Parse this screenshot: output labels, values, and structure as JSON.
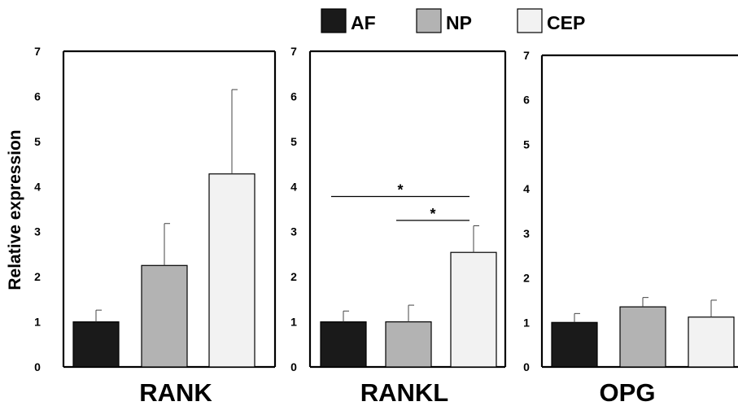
{
  "colors": {
    "AF": "#1a1a1a",
    "NP": "#b3b3b3",
    "CEP": "#f2f2f2"
  },
  "legend": [
    "AF",
    "NP",
    "CEP"
  ],
  "chart_data": [
    {
      "type": "bar",
      "title": "RANK",
      "ylabel": "Relative expression",
      "ylim": [
        0,
        7
      ],
      "yticks": [
        "0",
        "1",
        "2",
        "3",
        "4",
        "5",
        "6",
        "7"
      ],
      "categories": [
        "AF",
        "NP",
        "CEP"
      ],
      "values": [
        1.0,
        2.25,
        4.28
      ],
      "errors": [
        0.26,
        0.93,
        1.87
      ],
      "annotations": []
    },
    {
      "type": "bar",
      "title": "RANKL",
      "ylabel": "",
      "ylim": [
        0,
        7
      ],
      "yticks": [
        "0",
        "1",
        "2",
        "3",
        "4",
        "5",
        "6",
        "7"
      ],
      "categories": [
        "AF",
        "NP",
        "CEP"
      ],
      "values": [
        1.0,
        1.0,
        2.54
      ],
      "errors": [
        0.24,
        0.37,
        0.59
      ],
      "annotations": [
        {
          "from": 0,
          "to": 2,
          "y": 3.78,
          "text": "*"
        },
        {
          "from": 1,
          "to": 2,
          "y": 3.25,
          "text": "*"
        }
      ]
    },
    {
      "type": "bar",
      "title": "OPG",
      "ylabel": "",
      "ylim": [
        0,
        7
      ],
      "yticks": [
        "0",
        "1",
        "2",
        "3",
        "4",
        "5",
        "6",
        "7"
      ],
      "categories": [
        "AF",
        "NP",
        "CEP"
      ],
      "values": [
        1.0,
        1.35,
        1.12
      ],
      "errors": [
        0.2,
        0.21,
        0.38
      ],
      "annotations": []
    }
  ]
}
